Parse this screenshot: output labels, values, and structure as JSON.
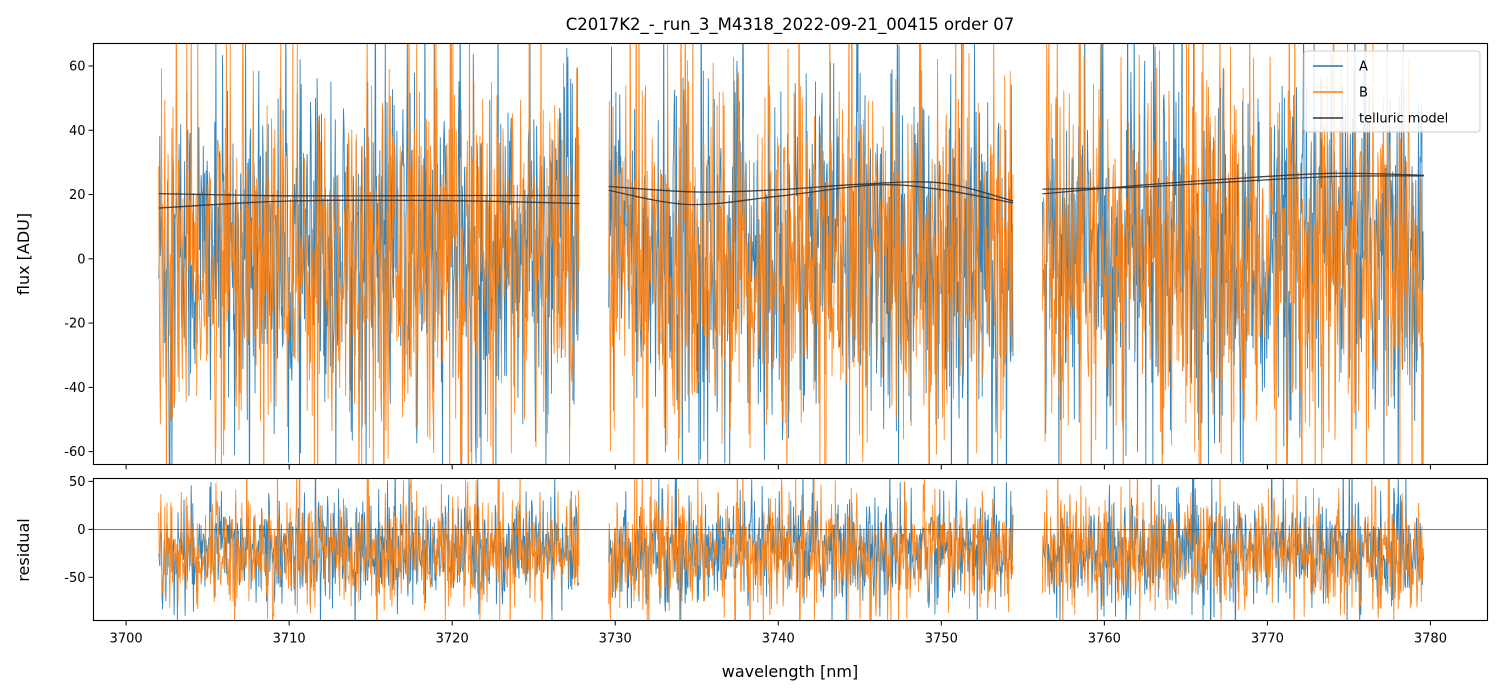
{
  "chart_data": {
    "type": "line",
    "title": "C2017K2_-_run_3_M4318_2022-09-21_00415  order 07",
    "colors": {
      "A": "#1f77b4",
      "B": "#ff7f0e",
      "telluric": "#333333"
    },
    "shared_x": {
      "label": "wavelength [nm]",
      "lim": [
        3698,
        3783.5
      ],
      "ticks": [
        3700,
        3710,
        3720,
        3730,
        3740,
        3750,
        3760,
        3770,
        3780
      ]
    },
    "segments": [
      [
        3702.0,
        3727.8
      ],
      [
        3729.6,
        3754.4
      ],
      [
        3756.2,
        3779.6
      ]
    ],
    "panels": [
      {
        "id": "flux",
        "ylabel": "flux [ADU]",
        "ylim": [
          -64,
          67
        ],
        "yticks": [
          60,
          40,
          20,
          0,
          -20,
          -40,
          -60
        ],
        "series": [
          {
            "name": "A",
            "center": 2,
            "spread": 26,
            "note": "noisy spectrum, clipped at axes"
          },
          {
            "name": "B",
            "center": 0,
            "spread": 28,
            "note": "noisy spectrum, clipped at axes"
          }
        ],
        "telluric_model": [
          {
            "segment": 0,
            "x": [
              3702,
              3710,
              3720,
              3727.8
            ],
            "y": [
              20.3,
              19.6,
              19.7,
              19.7
            ]
          },
          {
            "segment": 0,
            "x": [
              3702,
              3710,
              3720,
              3727.8
            ],
            "y": [
              15.8,
              18.0,
              18.1,
              17.2
            ]
          },
          {
            "segment": 1,
            "x": [
              3729.6,
              3735,
              3740,
              3745,
              3750,
              3754.4
            ],
            "y": [
              22.5,
              20.8,
              21.5,
              23.2,
              23.6,
              18.0
            ]
          },
          {
            "segment": 1,
            "x": [
              3729.6,
              3734.5,
              3740,
              3746,
              3750,
              3754.4
            ],
            "y": [
              21.3,
              16.9,
              19.5,
              23.0,
              21.5,
              17.4
            ]
          },
          {
            "segment": 2,
            "x": [
              3756.2,
              3762,
              3768,
              3774,
              3779.6
            ],
            "y": [
              21.7,
              22.3,
              24.0,
              25.6,
              25.8
            ]
          },
          {
            "segment": 2,
            "x": [
              3756.2,
              3762,
              3768,
              3774,
              3779.6
            ],
            "y": [
              20.2,
              22.8,
              25.0,
              26.6,
              26.0
            ]
          }
        ],
        "legend": {
          "placement": "top-right",
          "entries": [
            {
              "label": "A",
              "color": "#1f77b4"
            },
            {
              "label": "B",
              "color": "#ff7f0e"
            },
            {
              "label": "telluric model",
              "color": "#333333"
            }
          ]
        }
      },
      {
        "id": "residual",
        "ylabel": "residual",
        "ylim": [
          -95,
          53
        ],
        "yticks": [
          50,
          0,
          -50
        ],
        "zero_line": true,
        "series": [
          {
            "name": "A",
            "center": -22,
            "spread": 26,
            "note": "residual noise"
          },
          {
            "name": "B",
            "center": -24,
            "spread": 28,
            "note": "residual noise"
          }
        ]
      }
    ]
  }
}
